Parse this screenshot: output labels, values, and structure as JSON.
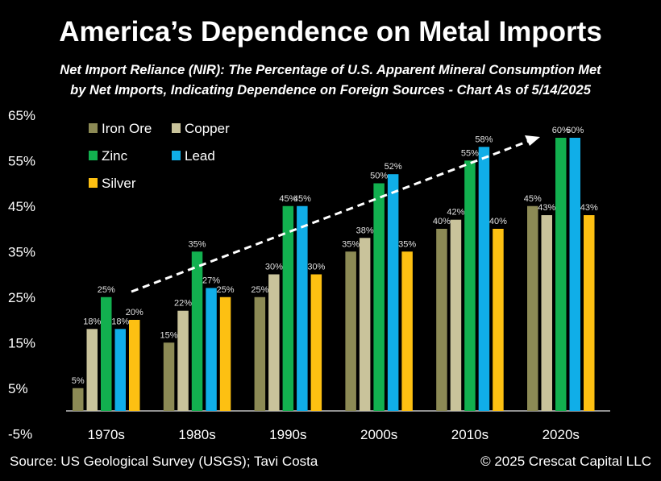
{
  "chart_data": {
    "type": "bar",
    "title": "America’s Dependence on Metal Imports",
    "subtitle_line1": "Net Import Reliance (NIR): The Percentage of U.S. Apparent Mineral Consumption Met",
    "subtitle_line2": "by Net Imports, Indicating Dependence on Foreign Sources - Chart As of 5/14/2025",
    "categories": [
      "1970s",
      "1980s",
      "1990s",
      "2000s",
      "2010s",
      "2020s"
    ],
    "series": [
      {
        "name": "Iron Ore",
        "color": "#8c8a55",
        "values": [
          5,
          15,
          25,
          35,
          40,
          45
        ]
      },
      {
        "name": "Copper",
        "color": "#c9c39b",
        "values": [
          18,
          22,
          30,
          38,
          42,
          43
        ]
      },
      {
        "name": "Zinc",
        "color": "#12b04f",
        "values": [
          25,
          35,
          45,
          50,
          55,
          60
        ]
      },
      {
        "name": "Lead",
        "color": "#10aee8",
        "values": [
          18,
          27,
          45,
          52,
          58,
          60
        ]
      },
      {
        "name": "Silver",
        "color": "#fdc012",
        "values": [
          20,
          25,
          30,
          35,
          40,
          43
        ]
      }
    ],
    "yticks": [
      "65%",
      "55%",
      "45%",
      "35%",
      "25%",
      "15%",
      "5%",
      "-5%"
    ],
    "ytick_values": [
      65,
      55,
      45,
      35,
      25,
      15,
      5,
      -5
    ],
    "ylim": [
      -5,
      65
    ],
    "grid": false,
    "legend_placement": "top-left",
    "annotation": "dashed white trend arrow rising from 1970s to 2020s",
    "source": "Source: US Geological Survey (USGS); Tavi Costa",
    "copyright": "© 2025 Crescat Capital LLC"
  }
}
